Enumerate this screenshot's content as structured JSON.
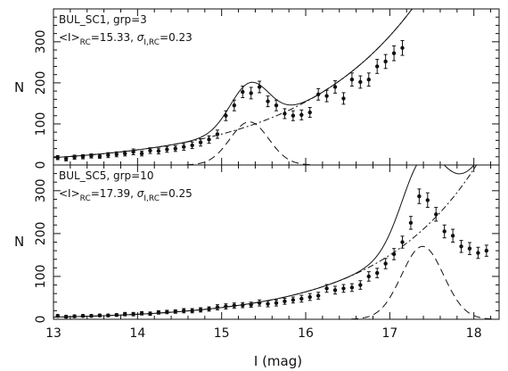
{
  "chart_data": [
    {
      "type": "scatter",
      "title": "",
      "annotation_line1": "BUL_SC1, grp=3",
      "annotation_line2_prefix": "<I>",
      "annotation_line2_sub1": "RC",
      "annotation_line2_mid": "=15.33,   ",
      "annotation_line2_sigma": "σ",
      "annotation_line2_sub2": "I,RC",
      "annotation_line2_end": "=0.23",
      "ylabel": "N",
      "xlabel": "",
      "xlim": [
        13,
        18.3
      ],
      "ylim": [
        0,
        380
      ],
      "x_ticks": [
        "13",
        "14",
        "15",
        "16",
        "17",
        "18"
      ],
      "y_ticks": [
        "0",
        "100",
        "200",
        "300"
      ],
      "y_tick_values": [
        0,
        100,
        200,
        300
      ],
      "red_clump_mean": 15.33,
      "red_clump_sigma": 0.23,
      "series": [
        {
          "points": [
            [
              13.05,
              18
            ],
            [
              13.15,
              15
            ],
            [
              13.25,
              19
            ],
            [
              13.35,
              20
            ],
            [
              13.45,
              22
            ],
            [
              13.55,
              21
            ],
            [
              13.65,
              24
            ],
            [
              13.75,
              26
            ],
            [
              13.85,
              28
            ],
            [
              13.95,
              32
            ],
            [
              14.05,
              28
            ],
            [
              14.15,
              35
            ],
            [
              14.25,
              34
            ],
            [
              14.35,
              38
            ],
            [
              14.45,
              40
            ],
            [
              14.55,
              44
            ],
            [
              14.65,
              48
            ],
            [
              14.75,
              55
            ],
            [
              14.85,
              62
            ],
            [
              14.95,
              75
            ],
            [
              15.05,
              120
            ],
            [
              15.15,
              145
            ],
            [
              15.25,
              178
            ],
            [
              15.35,
              175
            ],
            [
              15.45,
              190
            ],
            [
              15.55,
              155
            ],
            [
              15.65,
              145
            ],
            [
              15.75,
              125
            ],
            [
              15.85,
              120
            ],
            [
              15.95,
              122
            ],
            [
              16.05,
              128
            ],
            [
              16.15,
              172
            ],
            [
              16.25,
              168
            ],
            [
              16.35,
              190
            ],
            [
              16.45,
              162
            ],
            [
              16.55,
              208
            ],
            [
              16.65,
              202
            ],
            [
              16.75,
              208
            ],
            [
              16.85,
              240
            ],
            [
              16.95,
              252
            ],
            [
              17.05,
              272
            ],
            [
              17.15,
              285
            ]
          ],
          "errors": [
            5,
            5,
            5,
            5,
            5,
            5,
            6,
            6,
            6,
            7,
            6,
            7,
            7,
            7,
            7,
            8,
            8,
            9,
            9,
            10,
            12,
            13,
            14,
            14,
            14,
            13,
            13,
            12,
            12,
            12,
            12,
            14,
            14,
            15,
            14,
            16,
            15,
            16,
            17,
            17,
            18,
            18
          ]
        }
      ],
      "fit_curves": [
        "solid-total-fit",
        "dash-dot-background",
        "dashed-gaussian"
      ]
    },
    {
      "type": "scatter",
      "title": "",
      "annotation_line1": "BUL_SC5, grp=10",
      "annotation_line2_prefix": "<I>",
      "annotation_line2_sub1": "RC",
      "annotation_line2_mid": "=17.39,   ",
      "annotation_line2_sigma": "σ",
      "annotation_line2_sub2": "I,RC",
      "annotation_line2_end": "=0.25",
      "ylabel": "N",
      "xlabel": "I (mag)",
      "xlim": [
        13,
        18.3
      ],
      "ylim": [
        0,
        360
      ],
      "x_ticks": [
        "13",
        "14",
        "15",
        "16",
        "17",
        "18"
      ],
      "y_ticks": [
        "0",
        "100",
        "200",
        "300"
      ],
      "y_tick_values": [
        0,
        100,
        200,
        300
      ],
      "red_clump_mean": 17.39,
      "red_clump_sigma": 0.25,
      "series": [
        {
          "points": [
            [
              13.05,
              8
            ],
            [
              13.15,
              6
            ],
            [
              13.25,
              7
            ],
            [
              13.35,
              8
            ],
            [
              13.45,
              8
            ],
            [
              13.55,
              9
            ],
            [
              13.65,
              9
            ],
            [
              13.75,
              10
            ],
            [
              13.85,
              12
            ],
            [
              13.95,
              12
            ],
            [
              14.05,
              14
            ],
            [
              14.15,
              13
            ],
            [
              14.25,
              16
            ],
            [
              14.35,
              17
            ],
            [
              14.45,
              18
            ],
            [
              14.55,
              20
            ],
            [
              14.65,
              20
            ],
            [
              14.75,
              22
            ],
            [
              14.85,
              24
            ],
            [
              14.95,
              28
            ],
            [
              15.05,
              30
            ],
            [
              15.15,
              32
            ],
            [
              15.25,
              33
            ],
            [
              15.35,
              34
            ],
            [
              15.45,
              38
            ],
            [
              15.55,
              36
            ],
            [
              15.65,
              38
            ],
            [
              15.75,
              42
            ],
            [
              15.85,
              45
            ],
            [
              15.95,
              48
            ],
            [
              16.05,
              52
            ],
            [
              16.15,
              55
            ],
            [
              16.25,
              72
            ],
            [
              16.35,
              68
            ],
            [
              16.45,
              72
            ],
            [
              16.55,
              74
            ],
            [
              16.65,
              80
            ],
            [
              16.75,
              100
            ],
            [
              16.85,
              108
            ],
            [
              16.95,
              130
            ],
            [
              17.05,
              152
            ],
            [
              17.15,
              180
            ],
            [
              17.25,
              225
            ],
            [
              17.35,
              287
            ],
            [
              17.45,
              278
            ],
            [
              17.55,
              245
            ],
            [
              17.65,
              205
            ],
            [
              17.75,
              195
            ],
            [
              17.85,
              170
            ],
            [
              17.95,
              165
            ],
            [
              18.05,
              155
            ],
            [
              18.15,
              160
            ]
          ],
          "errors": [
            3,
            3,
            3,
            3,
            3,
            3,
            3,
            3,
            4,
            4,
            4,
            4,
            4,
            4,
            4,
            5,
            5,
            5,
            5,
            6,
            6,
            6,
            6,
            6,
            7,
            7,
            7,
            7,
            7,
            8,
            8,
            8,
            9,
            9,
            9,
            9,
            10,
            11,
            11,
            12,
            13,
            14,
            15,
            17,
            17,
            16,
            15,
            15,
            14,
            14,
            13,
            13
          ]
        }
      ],
      "fit_curves": [
        "solid-total-fit",
        "dash-dot-background",
        "dashed-gaussian"
      ]
    }
  ]
}
